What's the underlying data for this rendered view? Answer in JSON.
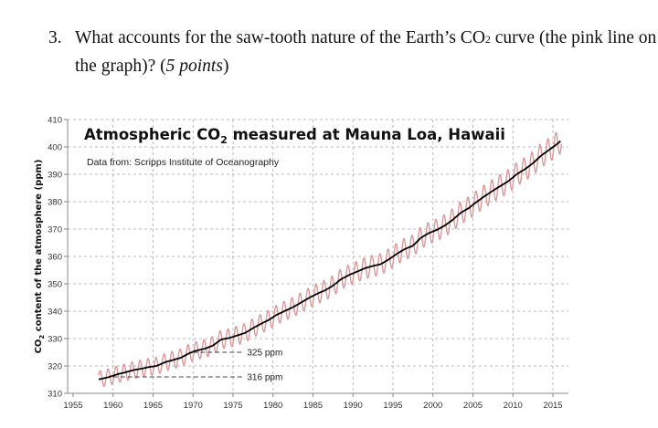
{
  "question": {
    "number": "3.",
    "text_before": "What accounts for the saw-tooth nature of the Earth’s CO",
    "sub": "2",
    "text_after": " curve (the pink line on the graph)?  (",
    "points": "5 points",
    "close": ")"
  },
  "chart_data": {
    "type": "line",
    "title": "Atmospheric CO",
    "title_sub": "2",
    "title_rest": " measured at Mauna Loa, Hawaii",
    "subtitle": "Data from: Scripps Institute of Oceanography",
    "ylabel": "CO",
    "ylabel_sub": "2",
    "ylabel_rest": " content of the atmosphere (ppm)",
    "xlabel": "",
    "xlim": [
      1955,
      2016
    ],
    "ylim": [
      310,
      410
    ],
    "grid": true,
    "x_ticks": [
      "1955",
      "1960",
      "1965",
      "1970",
      "1975",
      "1980",
      "1985",
      "1990",
      "1995",
      "2000",
      "2005",
      "2010",
      "2015"
    ],
    "y_ticks": [
      "310",
      "320",
      "330",
      "340",
      "350",
      "360",
      "370",
      "380",
      "390",
      "400",
      "410"
    ],
    "seasonal_amplitude_ppm": 3,
    "series": [
      {
        "color": "#d9999a",
        "style": "monthly-seasonal",
        "years": [
          1958,
          1959,
          1960,
          1961,
          1962,
          1963,
          1964,
          1965,
          1966,
          1967,
          1968,
          1969,
          1970,
          1971,
          1972,
          1973,
          1974,
          1975,
          1976,
          1977,
          1978,
          1979,
          1980,
          1981,
          1982,
          1983,
          1984,
          1985,
          1986,
          1987,
          1988,
          1989,
          1990,
          1991,
          1992,
          1993,
          1994,
          1995,
          1996,
          1997,
          1998,
          1999,
          2000,
          2001,
          2002,
          2003,
          2004,
          2005,
          2006,
          2007,
          2008,
          2009,
          2010,
          2011,
          2012,
          2013,
          2014,
          2015,
          2016
        ],
        "annual_mean": [
          315.3,
          315.98,
          316.91,
          317.64,
          318.45,
          318.99,
          319.62,
          320.04,
          321.38,
          322.16,
          323.04,
          324.62,
          325.68,
          326.32,
          327.46,
          329.68,
          330.19,
          331.13,
          332.03,
          333.84,
          335.41,
          336.84,
          338.76,
          340.12,
          341.48,
          343.15,
          344.85,
          346.35,
          347.61,
          349.31,
          351.69,
          353.2,
          354.45,
          355.7,
          356.54,
          357.21,
          358.96,
          360.97,
          362.74,
          363.88,
          366.84,
          368.54,
          369.71,
          371.32,
          373.45,
          375.98,
          377.7,
          379.98,
          382.09,
          384.02,
          385.83,
          387.64,
          390.1,
          391.85,
          394.06,
          396.74,
          398.87,
          401.01,
          403.5
        ]
      },
      {
        "color": "#000000",
        "style": "trend"
      }
    ],
    "annotations": [
      {
        "label": "325 ppm",
        "value": 325,
        "from_year": 1970,
        "to_year": 1976.3
      },
      {
        "label": "316 ppm",
        "value": 316,
        "from_year": 1960,
        "to_year": 1976.3
      }
    ]
  }
}
